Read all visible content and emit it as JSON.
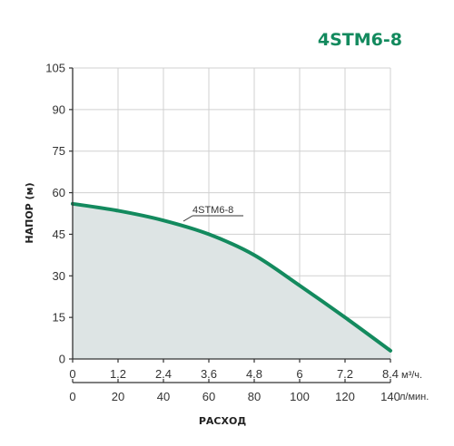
{
  "colors": {
    "accent": "#138a5e",
    "area_fill": "#dde4e4",
    "grid": "#d0d0d0",
    "axis": "#333333",
    "text": "#333333"
  },
  "chart_data": {
    "type": "area",
    "title": "4STM6-8",
    "ylabel": "НАПОР (м)",
    "xlabel": "РАСХОД",
    "ylim": [
      0,
      105
    ],
    "yticks": [
      "0",
      "15",
      "30",
      "45",
      "60",
      "75",
      "90",
      "105"
    ],
    "xlim": [
      0,
      8.4
    ],
    "xticks_primary": [
      "0",
      "1.2",
      "2.4",
      "3.6",
      "4.8",
      "6",
      "7.2",
      "8.4"
    ],
    "xunit_primary": "м³/ч.",
    "xticks_secondary": [
      "0",
      "20",
      "40",
      "60",
      "80",
      "100",
      "120",
      "140"
    ],
    "xunit_secondary": "л/мин.",
    "grid": true,
    "series": [
      {
        "name": "4STM6-8",
        "x": [
          0,
          1.2,
          2.4,
          3.6,
          4.8,
          6,
          7.2,
          8.4
        ],
        "y": [
          56,
          53.5,
          50,
          45,
          37.5,
          26.5,
          15,
          3
        ]
      }
    ]
  }
}
